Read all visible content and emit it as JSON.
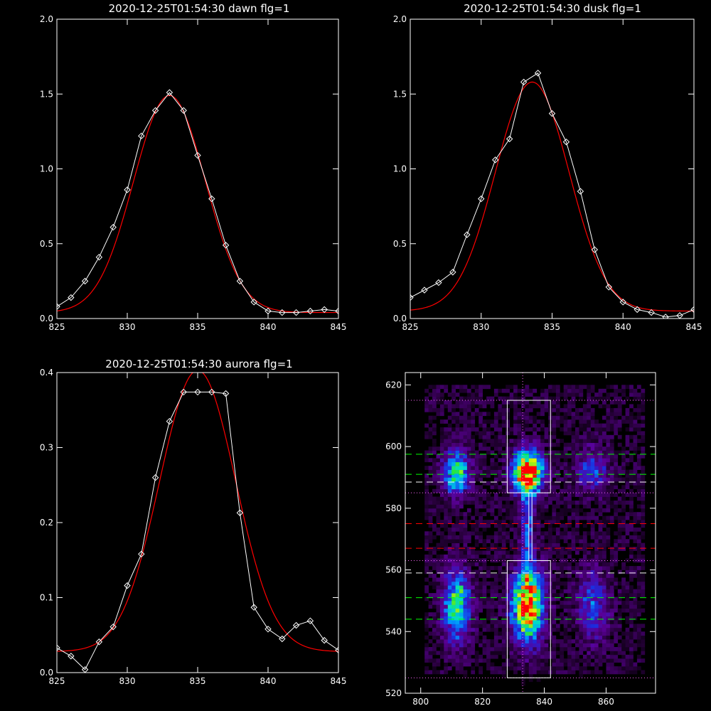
{
  "chart_data": [
    {
      "type": "line",
      "title": "2020-12-25T01:54:30 dawn flg=1",
      "xlim": [
        825,
        845
      ],
      "ylim": [
        0,
        2.0
      ],
      "xticks": [
        825,
        830,
        835,
        840,
        845
      ],
      "yticks": [
        "0.0",
        "0.5",
        "1.0",
        "1.5",
        "2.0"
      ],
      "series": [
        {
          "kind": "data",
          "color": "#ffffff",
          "markers": "diamond",
          "x": [
            825,
            826,
            827,
            828,
            829,
            830,
            831,
            832,
            833,
            834,
            835,
            836,
            837,
            838,
            839,
            840,
            841,
            842,
            843,
            844,
            845
          ],
          "y": [
            0.08,
            0.14,
            0.25,
            0.41,
            0.61,
            0.86,
            1.22,
            1.39,
            1.51,
            1.39,
            1.09,
            0.8,
            0.49,
            0.25,
            0.11,
            0.05,
            0.04,
            0.04,
            0.05,
            0.06,
            0.05
          ]
        },
        {
          "kind": "fit",
          "color": "#ff0000",
          "markers": "none",
          "gauss": {
            "a": 1.45,
            "mu": 833.0,
            "sigma": 2.55,
            "c": 0.04
          }
        }
      ]
    },
    {
      "type": "line",
      "title": "2020-12-25T01:54:30 dusk flg=1",
      "xlim": [
        825,
        845
      ],
      "ylim": [
        0,
        2.0
      ],
      "xticks": [
        825,
        830,
        835,
        840,
        845
      ],
      "yticks": [
        "0.0",
        "0.5",
        "1.0",
        "1.5",
        "2.0"
      ],
      "series": [
        {
          "kind": "data",
          "color": "#ffffff",
          "markers": "diamond",
          "x": [
            825,
            826,
            827,
            828,
            829,
            830,
            831,
            832,
            833,
            834,
            835,
            836,
            837,
            838,
            839,
            840,
            841,
            842,
            843,
            844,
            845
          ],
          "y": [
            0.14,
            0.19,
            0.24,
            0.31,
            0.56,
            0.8,
            1.06,
            1.2,
            1.58,
            1.64,
            1.37,
            1.18,
            0.85,
            0.46,
            0.21,
            0.11,
            0.06,
            0.04,
            0.01,
            0.02,
            0.06
          ]
        },
        {
          "kind": "fit",
          "color": "#ff0000",
          "markers": "none",
          "gauss": {
            "a": 1.53,
            "mu": 833.6,
            "sigma": 2.6,
            "c": 0.05
          }
        }
      ]
    },
    {
      "type": "line",
      "title": "2020-12-25T01:54:30 aurora flg=1",
      "xlim": [
        825,
        845
      ],
      "ylim": [
        0,
        0.4
      ],
      "xticks": [
        825,
        830,
        835,
        840,
        845
      ],
      "yticks": [
        "0.0",
        "0.1",
        "0.2",
        "0.3",
        "0.4"
      ],
      "series": [
        {
          "kind": "data",
          "color": "#ffffff",
          "markers": "diamond",
          "x": [
            825,
            826,
            827,
            828,
            829,
            830,
            831,
            832,
            833,
            834,
            835,
            836,
            837,
            838,
            839,
            840,
            841,
            842,
            843,
            844,
            845
          ],
          "y": [
            0.033,
            0.022,
            0.004,
            0.041,
            0.061,
            0.116,
            0.158,
            0.26,
            0.335,
            0.374,
            0.374,
            0.374,
            0.372,
            0.213,
            0.087,
            0.058,
            0.045,
            0.063,
            0.069,
            0.043,
            0.03
          ]
        },
        {
          "kind": "fit",
          "color": "#ff0000",
          "markers": "none",
          "gauss": {
            "a": 0.375,
            "mu": 835.0,
            "sigma": 2.7,
            "c": 0.028
          }
        }
      ]
    },
    {
      "type": "heatmap",
      "xlim": [
        795,
        876
      ],
      "ylim": [
        520,
        624
      ],
      "xticks": [
        800,
        820,
        840,
        860
      ],
      "yticks": [
        520,
        540,
        560,
        580,
        600,
        620
      ],
      "blobs": [
        {
          "x": 834,
          "y": 591,
          "sx": 3.5,
          "sy": 5,
          "amp": 1.0
        },
        {
          "x": 834,
          "y": 548,
          "sx": 3.5,
          "sy": 8,
          "amp": 1.0
        },
        {
          "x": 834,
          "y": 572,
          "sx": 1.5,
          "sy": 10,
          "amp": 0.35
        },
        {
          "x": 811,
          "y": 591,
          "sx": 3,
          "sy": 5,
          "amp": 0.62
        },
        {
          "x": 811,
          "y": 548,
          "sx": 3,
          "sy": 8,
          "amp": 0.65
        },
        {
          "x": 855,
          "y": 592,
          "sx": 3.5,
          "sy": 5,
          "amp": 0.35
        },
        {
          "x": 855,
          "y": 548,
          "sx": 3.5,
          "sy": 8,
          "amp": 0.35
        }
      ],
      "boxes": [
        {
          "x0": 828,
          "x1": 842,
          "y0": 585,
          "y1": 615
        },
        {
          "x0": 828,
          "x1": 842,
          "y0": 525,
          "y1": 563
        },
        {
          "x0": 835,
          "x1": 836,
          "y0": 563,
          "y1": 585
        }
      ],
      "hlines": [
        {
          "y": 615,
          "color": "#ff66ff",
          "style": "dotted"
        },
        {
          "y": 597.5,
          "color": "#00ff00",
          "style": "dashed"
        },
        {
          "y": 591,
          "color": "#00ff00",
          "style": "dashed"
        },
        {
          "y": 588.5,
          "color": "#ffffff",
          "style": "dashed"
        },
        {
          "y": 585,
          "color": "#ff66ff",
          "style": "dotted"
        },
        {
          "y": 575,
          "color": "#ff0000",
          "style": "dashed"
        },
        {
          "y": 567,
          "color": "#ff0000",
          "style": "dashed"
        },
        {
          "y": 563,
          "color": "#ff66ff",
          "style": "dotted"
        },
        {
          "y": 559,
          "color": "#ffffff",
          "style": "dashed"
        },
        {
          "y": 551,
          "color": "#00ff00",
          "style": "dashed"
        },
        {
          "y": 544,
          "color": "#00ff00",
          "style": "dashed"
        },
        {
          "y": 525,
          "color": "#ff66ff",
          "style": "dotted"
        }
      ],
      "vlines": [
        {
          "x": 833,
          "color": "#ff66ff",
          "style": "dotted"
        }
      ]
    }
  ]
}
